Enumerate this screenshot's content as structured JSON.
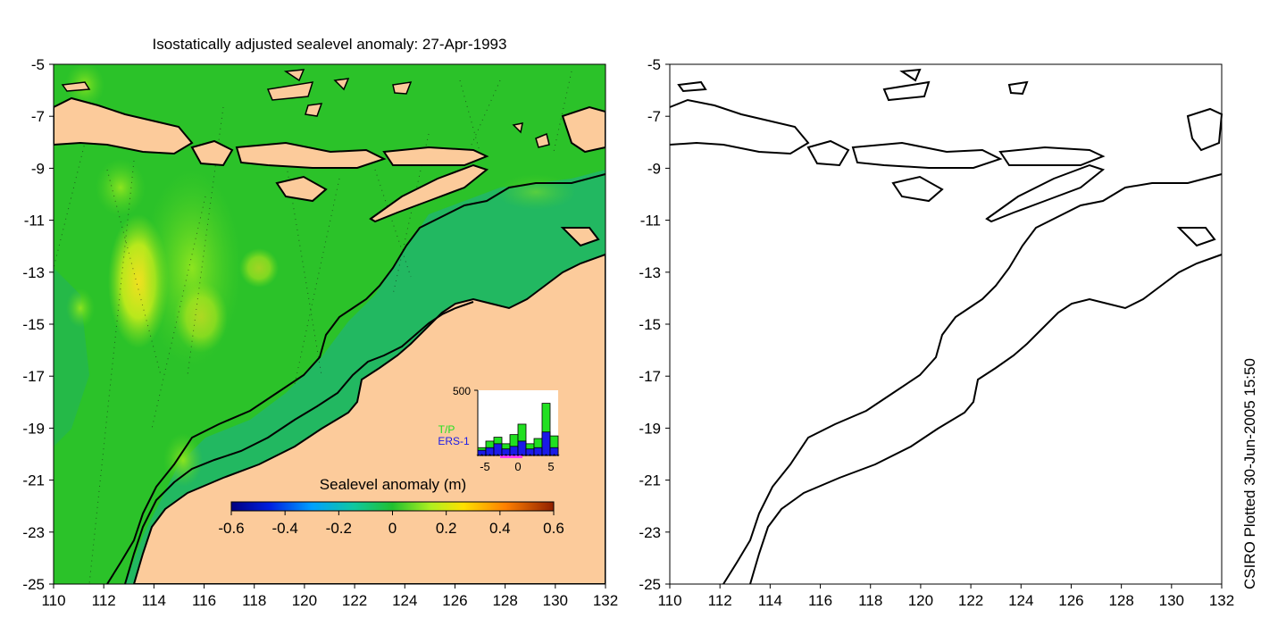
{
  "title": "Isostatically adjusted sealevel anomaly: 27-Apr-1993",
  "credit": "CSIRO Plotted 30-Jun-2005 15:50",
  "axes": {
    "x_ticks": [
      "110",
      "112",
      "114",
      "116",
      "118",
      "120",
      "122",
      "124",
      "126",
      "128",
      "130",
      "132"
    ],
    "y_ticks": [
      "-5",
      "-7",
      "-9",
      "-11",
      "-13",
      "-15",
      "-17",
      "-19",
      "-21",
      "-23",
      "-25"
    ]
  },
  "colorbar": {
    "label": "Sealevel anomaly (m)",
    "ticks": [
      "-0.6",
      "-0.4",
      "-0.2",
      "0",
      "0.2",
      "0.4",
      "0.6"
    ],
    "range": [
      -0.6,
      0.6
    ]
  },
  "histogram": {
    "ymax_label": "500",
    "x_ticks": [
      "-5",
      "0",
      "5"
    ],
    "series_tp": "T/P",
    "series_ers": "ERS-1",
    "tp_values": [
      60,
      110,
      140,
      90,
      160,
      240,
      90,
      130,
      400,
      150
    ],
    "ers_values": [
      40,
      60,
      90,
      50,
      70,
      110,
      50,
      60,
      180,
      60
    ],
    "ymax": 500
  },
  "colors": {
    "land": "#fccb9b",
    "ocean": "#2bc229",
    "shelf": "#1fb76a",
    "tp": "#21e021",
    "ers": "#1a1ae8",
    "pink": "#ff3cff"
  }
}
